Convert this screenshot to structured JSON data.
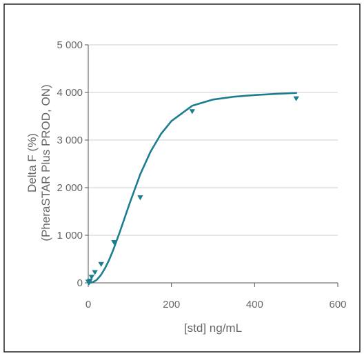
{
  "chart_data": {
    "type": "scatter",
    "title": "",
    "xlabel": "[std] ng/mL",
    "ylabel_lines": [
      "Delta F (%)",
      "(PheraSTAR Plus PROD, ON)"
    ],
    "xlim": [
      0,
      600
    ],
    "ylim": [
      0,
      5000
    ],
    "x_ticks": [
      0,
      200,
      400,
      600
    ],
    "x_tick_labels": [
      "0",
      "200",
      "400",
      "600"
    ],
    "y_ticks": [
      0,
      1000,
      2000,
      3000,
      4000,
      5000
    ],
    "y_tick_labels": [
      "0",
      "1 000",
      "2 000",
      "3 000",
      "4 000",
      "5 000"
    ],
    "grid": "horizontal",
    "series": [
      {
        "marker": "triangle-down",
        "color": "#1d7d90",
        "points": [
          {
            "x": 0,
            "y": 20
          },
          {
            "x": 2,
            "y": 0
          },
          {
            "x": 4,
            "y": 40
          },
          {
            "x": 8,
            "y": 120
          },
          {
            "x": 16,
            "y": 220
          },
          {
            "x": 31,
            "y": 390
          },
          {
            "x": 62,
            "y": 850
          },
          {
            "x": 125,
            "y": 1790
          },
          {
            "x": 250,
            "y": 3600
          },
          {
            "x": 500,
            "y": 3870
          }
        ]
      }
    ],
    "fit_curve": {
      "color": "#1d7d90",
      "points": [
        [
          0,
          0
        ],
        [
          10,
          10
        ],
        [
          20,
          60
        ],
        [
          30,
          160
        ],
        [
          40,
          300
        ],
        [
          50,
          480
        ],
        [
          60,
          690
        ],
        [
          75,
          1050
        ],
        [
          100,
          1680
        ],
        [
          125,
          2280
        ],
        [
          150,
          2760
        ],
        [
          175,
          3130
        ],
        [
          200,
          3400
        ],
        [
          250,
          3720
        ],
        [
          300,
          3850
        ],
        [
          350,
          3910
        ],
        [
          400,
          3945
        ],
        [
          450,
          3970
        ],
        [
          500,
          3990
        ]
      ]
    }
  }
}
